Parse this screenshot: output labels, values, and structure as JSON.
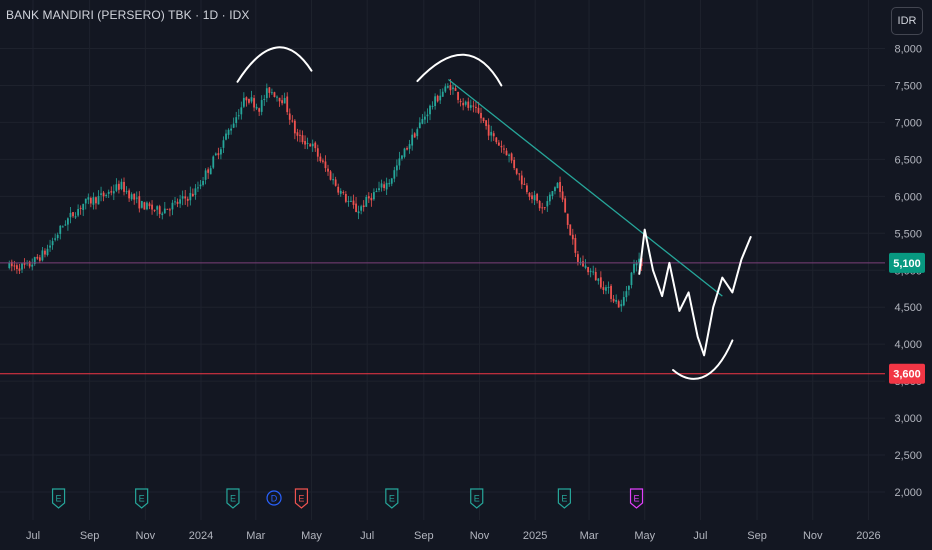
{
  "header": {
    "title": "BANK MANDIRI (PERSERO) TBK · 1D · IDX",
    "currency_button": "IDR"
  },
  "colors": {
    "up": "#26a69a",
    "down": "#ef5350",
    "background": "#131722",
    "grid": "#1e222d",
    "trendline": "#26a69a",
    "support": "#f23645",
    "current_line": "#7b3f7a",
    "drawing": "#ffffff"
  },
  "chart_data": {
    "type": "candlestick",
    "title": "BANK MANDIRI (PERSERO) TBK · 1D · IDX",
    "ylim": [
      1750,
      8250
    ],
    "y_ticks": [
      2000,
      2500,
      3000,
      3500,
      4000,
      4500,
      5000,
      5500,
      6000,
      6500,
      7000,
      7500,
      8000
    ],
    "y_tick_labels": [
      "2,000",
      "2,500",
      "3,000",
      "3,500",
      "4,000",
      "4,500",
      "5,000",
      "5,500",
      "6,000",
      "6,500",
      "7,000",
      "7,500",
      "8,000"
    ],
    "x_labels": [
      {
        "label": "Jul",
        "date": "2023-07-01"
      },
      {
        "label": "Sep",
        "date": "2023-09-01"
      },
      {
        "label": "Nov",
        "date": "2023-11-01"
      },
      {
        "label": "2024",
        "date": "2024-01-01"
      },
      {
        "label": "Mar",
        "date": "2024-03-01"
      },
      {
        "label": "May",
        "date": "2024-05-01"
      },
      {
        "label": "Jul",
        "date": "2024-07-01"
      },
      {
        "label": "Sep",
        "date": "2024-09-01"
      },
      {
        "label": "Nov",
        "date": "2024-11-01"
      },
      {
        "label": "2025",
        "date": "2025-01-01"
      },
      {
        "label": "Mar",
        "date": "2025-03-01"
      },
      {
        "label": "May",
        "date": "2025-05-01"
      },
      {
        "label": "Jul",
        "date": "2025-07-01"
      },
      {
        "label": "Sep",
        "date": "2025-09-01"
      },
      {
        "label": "Nov",
        "date": "2025-11-01"
      },
      {
        "label": "2026",
        "date": "2026-01-01"
      }
    ],
    "price_path": [
      [
        "2023-06-05",
        5050
      ],
      [
        "2023-06-25",
        5050
      ],
      [
        "2023-07-15",
        5250
      ],
      [
        "2023-08-05",
        5650
      ],
      [
        "2023-08-25",
        5900
      ],
      [
        "2023-09-15",
        6000
      ],
      [
        "2023-10-05",
        6150
      ],
      [
        "2023-10-25",
        5900
      ],
      [
        "2023-11-15",
        5800
      ],
      [
        "2023-12-05",
        5900
      ],
      [
        "2023-12-25",
        6050
      ],
      [
        "2024-01-15",
        6500
      ],
      [
        "2024-02-05",
        7000
      ],
      [
        "2024-02-20",
        7350
      ],
      [
        "2024-03-05",
        7200
      ],
      [
        "2024-03-15",
        7450
      ],
      [
        "2024-04-01",
        7300
      ],
      [
        "2024-04-15",
        6800
      ],
      [
        "2024-05-01",
        6700
      ],
      [
        "2024-05-15",
        6400
      ],
      [
        "2024-06-05",
        6000
      ],
      [
        "2024-06-20",
        5800
      ],
      [
        "2024-07-05",
        6000
      ],
      [
        "2024-07-25",
        6200
      ],
      [
        "2024-08-15",
        6700
      ],
      [
        "2024-09-05",
        7150
      ],
      [
        "2024-09-20",
        7400
      ],
      [
        "2024-09-30",
        7500
      ],
      [
        "2024-10-15",
        7250
      ],
      [
        "2024-11-01",
        7100
      ],
      [
        "2024-11-15",
        6800
      ],
      [
        "2024-12-01",
        6600
      ],
      [
        "2024-12-20",
        6150
      ],
      [
        "2025-01-10",
        5800
      ],
      [
        "2025-01-25",
        6200
      ],
      [
        "2025-02-05",
        5700
      ],
      [
        "2025-02-15",
        5150
      ],
      [
        "2025-03-01",
        5000
      ],
      [
        "2025-03-20",
        4750
      ],
      [
        "2025-04-05",
        4500
      ],
      [
        "2025-04-15",
        4900
      ],
      [
        "2025-04-22",
        5150
      ],
      [
        "2025-04-30",
        5050
      ]
    ],
    "annotations": {
      "current_price": {
        "value": 5100,
        "label": "5,100"
      },
      "support_level": {
        "value": 3600,
        "label": "3,600"
      },
      "trendline": {
        "start": [
          "2024-09-28",
          7580
        ],
        "end": [
          "2025-07-25",
          4650
        ]
      },
      "events": [
        {
          "letter": "E",
          "date": "2023-07-29",
          "kind": "earnings"
        },
        {
          "letter": "E",
          "date": "2023-10-28",
          "kind": "earnings"
        },
        {
          "letter": "E",
          "date": "2024-02-05",
          "kind": "earnings"
        },
        {
          "letter": "D",
          "date": "2024-03-21",
          "kind": "dividend"
        },
        {
          "letter": "E",
          "date": "2024-04-20",
          "kind": "earnings-red"
        },
        {
          "letter": "E",
          "date": "2024-07-28",
          "kind": "earnings"
        },
        {
          "letter": "E",
          "date": "2024-10-29",
          "kind": "earnings"
        },
        {
          "letter": "E",
          "date": "2025-02-02",
          "kind": "earnings"
        },
        {
          "letter": "E",
          "date": "2025-04-22",
          "kind": "earnings-pink"
        }
      ],
      "sketch_arcs": [
        {
          "start": [
            "2024-02-10",
            7550
          ],
          "control": [
            "2024-03-25",
            8400
          ],
          "end": [
            "2024-05-01",
            7700
          ]
        },
        {
          "start": [
            "2024-08-25",
            7560
          ],
          "control": [
            "2024-10-20",
            8300
          ],
          "end": [
            "2024-11-25",
            7500
          ]
        }
      ],
      "sketch_projection": [
        [
          "2025-04-25",
          4950
        ],
        [
          "2025-05-01",
          5550
        ],
        [
          "2025-05-10",
          5000
        ],
        [
          "2025-05-20",
          4650
        ],
        [
          "2025-05-28",
          5100
        ],
        [
          "2025-06-08",
          4450
        ],
        [
          "2025-06-18",
          4700
        ],
        [
          "2025-06-28",
          4100
        ],
        [
          "2025-07-05",
          3850
        ],
        [
          "2025-07-15",
          4500
        ],
        [
          "2025-07-25",
          4900
        ],
        [
          "2025-08-05",
          4700
        ],
        [
          "2025-08-15",
          5150
        ],
        [
          "2025-08-25",
          5450
        ]
      ],
      "sketch_bottom": [
        [
          "2025-06-01",
          3650
        ],
        [
          "2025-06-20",
          3450
        ],
        [
          "2025-07-15",
          3450
        ],
        [
          "2025-08-05",
          4050
        ]
      ]
    }
  }
}
